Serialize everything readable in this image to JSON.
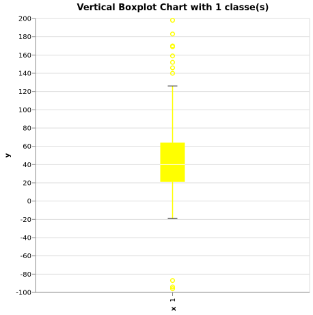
{
  "chart_data": {
    "type": "boxplot",
    "title": "Vertical Boxplot Chart with 1 classe(s)",
    "xlabel": "x",
    "ylabel": "y",
    "ylim": [
      -100,
      200
    ],
    "y_ticks": [
      -100,
      -80,
      -60,
      -40,
      -20,
      0,
      20,
      40,
      60,
      80,
      100,
      120,
      140,
      160,
      180,
      200
    ],
    "categories": [
      "1"
    ],
    "grid": true,
    "color": "#ffff00",
    "boxes": [
      {
        "category": "1",
        "whisker_low": -19,
        "q1": 21,
        "median": 40,
        "q3": 64,
        "whisker_high": 126,
        "outliers": [
          140,
          146,
          152,
          159,
          169,
          170,
          183,
          198,
          -87,
          -94,
          -96
        ]
      }
    ]
  }
}
